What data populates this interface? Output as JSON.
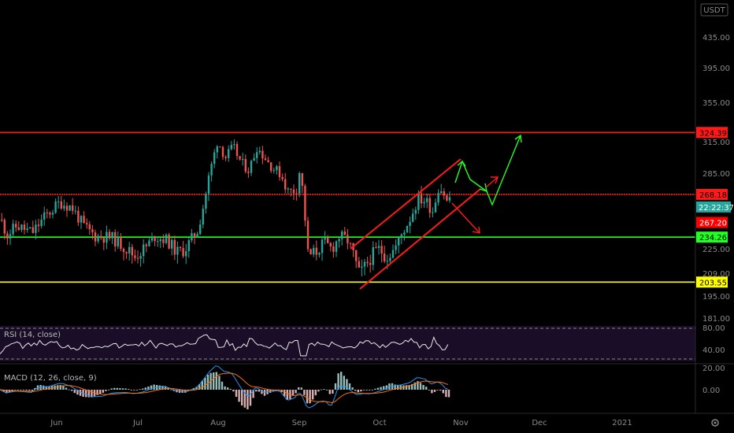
{
  "chart_data": {
    "type": "candlestick",
    "currency": "USDT",
    "price_axis_ticks": [
      "435.00",
      "395.00",
      "355.00",
      "315.00",
      "285.00",
      "225.00",
      "209.00",
      "195.00",
      "181.00"
    ],
    "x_axis_labels": [
      "Jun",
      "Jul",
      "Aug",
      "Sep",
      "Oct",
      "Nov",
      "Dec",
      "2021"
    ],
    "horizontal_levels": [
      {
        "value": 324.39,
        "label": "324.39",
        "color": "#ff1a1a"
      },
      {
        "value": 268.18,
        "label": "268.18",
        "color": "#ff1a1a",
        "dotted": true
      },
      {
        "value": 234.26,
        "label": "234.26",
        "color": "#22ff22"
      },
      {
        "value": 203.55,
        "label": "203.55",
        "color": "#ffff00"
      }
    ],
    "last_price": {
      "value": "268.18",
      "color": "#26a69a"
    },
    "countdown": "22:22:37",
    "prev_close_tag": {
      "value": "267.20",
      "color": "#ff0000"
    },
    "rsi": {
      "label": "RSI (14, close)",
      "ticks": [
        "80.00",
        "40.00"
      ],
      "color": "#e8e8e8"
    },
    "macd": {
      "label": "MACD (12, 26, close, 9)",
      "ticks": [
        "20.00",
        "0.00"
      ],
      "macd_color": "#2196f3",
      "signal_color": "#ff6d00"
    },
    "candle_colors": {
      "up": "#26a69a",
      "down": "#ef5350"
    }
  },
  "ui": {
    "settings_icon": "gear-icon"
  }
}
